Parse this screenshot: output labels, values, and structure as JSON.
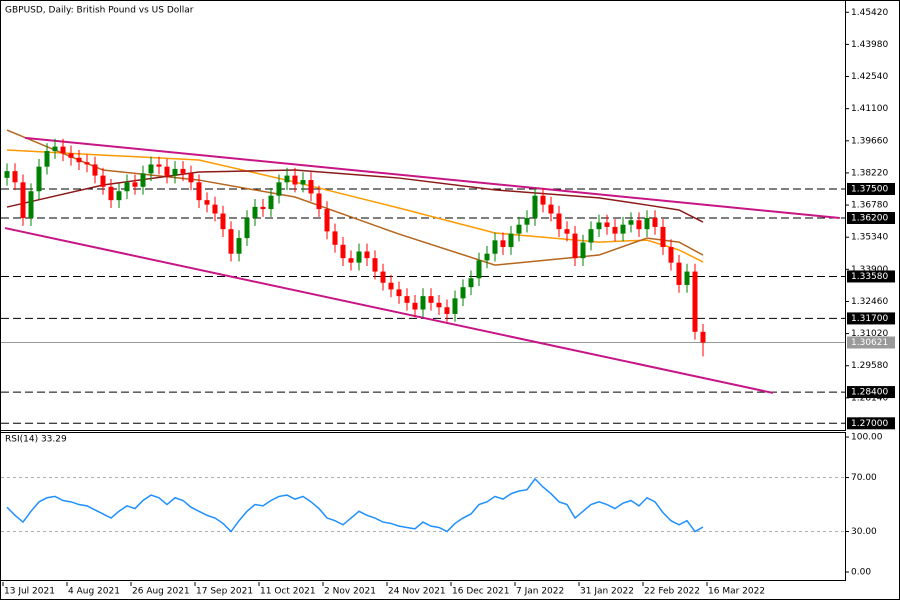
{
  "chart_data": [
    {
      "type": "candlestick",
      "title": "GBPUSD, Daily:  British Pound vs US Dollar",
      "up_color": "#008000",
      "down_color": "#ff0000",
      "candles": [
        [
          1.38,
          1.3865,
          1.3765,
          1.383
        ],
        [
          1.383,
          1.3865,
          1.3745,
          1.378
        ],
        [
          1.378,
          1.3815,
          1.3585,
          1.362
        ],
        [
          1.362,
          1.3775,
          1.3585,
          1.374
        ],
        [
          1.374,
          1.3885,
          1.3705,
          1.385
        ],
        [
          1.385,
          1.3955,
          1.3815,
          1.392
        ],
        [
          1.392,
          1.3975,
          1.3885,
          1.394
        ],
        [
          1.394,
          1.3975,
          1.3875,
          1.391
        ],
        [
          1.391,
          1.3945,
          1.3855,
          1.389
        ],
        [
          1.389,
          1.3925,
          1.3835,
          1.387
        ],
        [
          1.387,
          1.3905,
          1.3825,
          1.386
        ],
        [
          1.386,
          1.3895,
          1.3775,
          1.381
        ],
        [
          1.381,
          1.3845,
          1.3725,
          1.376
        ],
        [
          1.376,
          1.3795,
          1.3665,
          1.37
        ],
        [
          1.37,
          1.3775,
          1.3665,
          1.374
        ],
        [
          1.374,
          1.3815,
          1.3705,
          1.378
        ],
        [
          1.378,
          1.3815,
          1.3725,
          1.376
        ],
        [
          1.376,
          1.3855,
          1.3725,
          1.382
        ],
        [
          1.382,
          1.3895,
          1.3785,
          1.386
        ],
        [
          1.386,
          1.3895,
          1.3815,
          1.385
        ],
        [
          1.385,
          1.3885,
          1.3775,
          1.381
        ],
        [
          1.381,
          1.3875,
          1.3775,
          1.384
        ],
        [
          1.384,
          1.3875,
          1.3785,
          1.382
        ],
        [
          1.382,
          1.3855,
          1.3745,
          1.378
        ],
        [
          1.378,
          1.3815,
          1.3665,
          1.37
        ],
        [
          1.37,
          1.3735,
          1.3645,
          1.368
        ],
        [
          1.368,
          1.3715,
          1.3605,
          1.364
        ],
        [
          1.364,
          1.3675,
          1.3535,
          1.357
        ],
        [
          1.357,
          1.3605,
          1.3425,
          1.346
        ],
        [
          1.346,
          1.3565,
          1.3425,
          1.353
        ],
        [
          1.353,
          1.3655,
          1.3495,
          1.362
        ],
        [
          1.362,
          1.3705,
          1.3585,
          1.367
        ],
        [
          1.367,
          1.3705,
          1.3625,
          1.366
        ],
        [
          1.366,
          1.3755,
          1.3625,
          1.372
        ],
        [
          1.372,
          1.3815,
          1.3685,
          1.378
        ],
        [
          1.378,
          1.3845,
          1.3745,
          1.381
        ],
        [
          1.381,
          1.3845,
          1.3735,
          1.377
        ],
        [
          1.377,
          1.3825,
          1.3735,
          1.379
        ],
        [
          1.379,
          1.3825,
          1.3695,
          1.373
        ],
        [
          1.373,
          1.3765,
          1.3625,
          1.366
        ],
        [
          1.366,
          1.3695,
          1.3525,
          1.356
        ],
        [
          1.356,
          1.3595,
          1.3465,
          1.35
        ],
        [
          1.35,
          1.3535,
          1.3405,
          1.344
        ],
        [
          1.344,
          1.3475,
          1.3385,
          1.342
        ],
        [
          1.342,
          1.3505,
          1.3385,
          1.347
        ],
        [
          1.347,
          1.3505,
          1.3405,
          1.344
        ],
        [
          1.344,
          1.3475,
          1.3345,
          1.338
        ],
        [
          1.338,
          1.3415,
          1.3295,
          1.333
        ],
        [
          1.333,
          1.3365,
          1.3265,
          1.33
        ],
        [
          1.33,
          1.3335,
          1.3235,
          1.327
        ],
        [
          1.327,
          1.3305,
          1.3205,
          1.324
        ],
        [
          1.324,
          1.3275,
          1.3175,
          1.321
        ],
        [
          1.321,
          1.3305,
          1.3175,
          1.327
        ],
        [
          1.327,
          1.3305,
          1.3205,
          1.324
        ],
        [
          1.324,
          1.3275,
          1.3185,
          1.322
        ],
        [
          1.322,
          1.3255,
          1.3155,
          1.319
        ],
        [
          1.319,
          1.3295,
          1.3155,
          1.326
        ],
        [
          1.326,
          1.3345,
          1.3225,
          1.331
        ],
        [
          1.331,
          1.3385,
          1.3275,
          1.335
        ],
        [
          1.335,
          1.3465,
          1.3315,
          1.343
        ],
        [
          1.343,
          1.3495,
          1.3395,
          1.346
        ],
        [
          1.346,
          1.3555,
          1.3425,
          1.352
        ],
        [
          1.352,
          1.3555,
          1.3455,
          1.349
        ],
        [
          1.349,
          1.3585,
          1.3455,
          1.355
        ],
        [
          1.355,
          1.3625,
          1.3515,
          1.359
        ],
        [
          1.359,
          1.3655,
          1.3555,
          1.362
        ],
        [
          1.362,
          1.3755,
          1.3585,
          1.372
        ],
        [
          1.372,
          1.3755,
          1.3645,
          1.368
        ],
        [
          1.368,
          1.3715,
          1.3605,
          1.364
        ],
        [
          1.364,
          1.3675,
          1.3535,
          1.357
        ],
        [
          1.357,
          1.3605,
          1.3515,
          1.355
        ],
        [
          1.355,
          1.3585,
          1.3405,
          1.344
        ],
        [
          1.344,
          1.3545,
          1.3405,
          1.351
        ],
        [
          1.351,
          1.3605,
          1.3475,
          1.357
        ],
        [
          1.357,
          1.3635,
          1.3535,
          1.36
        ],
        [
          1.36,
          1.3635,
          1.3545,
          1.358
        ],
        [
          1.358,
          1.3615,
          1.3515,
          1.355
        ],
        [
          1.355,
          1.3625,
          1.3515,
          1.359
        ],
        [
          1.359,
          1.3645,
          1.3555,
          1.361
        ],
        [
          1.361,
          1.3645,
          1.3535,
          1.357
        ],
        [
          1.357,
          1.3655,
          1.3535,
          1.362
        ],
        [
          1.362,
          1.3655,
          1.3545,
          1.358
        ],
        [
          1.358,
          1.3615,
          1.3455,
          1.349
        ],
        [
          1.349,
          1.3525,
          1.3385,
          1.342
        ],
        [
          1.342,
          1.3455,
          1.3285,
          1.332
        ],
        [
          1.332,
          1.3415,
          1.3285,
          1.338
        ],
        [
          1.338,
          1.3415,
          1.3075,
          1.311
        ],
        [
          1.311,
          1.3145,
          1.3,
          1.3062
        ]
      ],
      "ylim": [
        1.267,
        1.4579
      ],
      "yticks": [
        {
          "value": 1.4542,
          "label": "1.45420"
        },
        {
          "value": 1.4398,
          "label": "1.43980"
        },
        {
          "value": 1.4254,
          "label": "1.42540"
        },
        {
          "value": 1.411,
          "label": "1.41100"
        },
        {
          "value": 1.3966,
          "label": "1.39660"
        },
        {
          "value": 1.3822,
          "label": "1.38220"
        },
        {
          "value": 1.3678,
          "label": "1.36780"
        },
        {
          "value": 1.3534,
          "label": "1.35340"
        },
        {
          "value": 1.339,
          "label": "1.33900"
        },
        {
          "value": 1.3246,
          "label": "1.32460"
        },
        {
          "value": 1.3102,
          "label": "1.31020"
        },
        {
          "value": 1.2958,
          "label": "1.29580"
        },
        {
          "value": 1.2814,
          "label": "1.28140"
        }
      ],
      "levels": [
        {
          "value": 1.375,
          "label": "1.37500"
        },
        {
          "value": 1.362,
          "label": "1.36200"
        },
        {
          "value": 1.3358,
          "label": "1.33580"
        },
        {
          "value": 1.317,
          "label": "1.31700"
        },
        {
          "value": 1.284,
          "label": "1.28400"
        },
        {
          "value": 1.27,
          "label": "1.27000"
        }
      ],
      "current": {
        "value": 1.30621,
        "label": "1.30621"
      },
      "moving_averages": [
        {
          "color": "#ff9900",
          "x": [
            0,
            12,
            24,
            36,
            49,
            61,
            74,
            80,
            84,
            87
          ],
          "values": [
            1.3925,
            1.3902,
            1.388,
            1.3781,
            1.3665,
            1.3553,
            1.3512,
            1.3521,
            1.3477,
            1.3423
          ]
        },
        {
          "color": "#b5651d",
          "x": [
            0,
            12,
            24,
            36,
            49,
            61,
            74,
            80,
            84,
            87
          ],
          "values": [
            1.4014,
            1.3835,
            1.379,
            1.3714,
            1.3548,
            1.3409,
            1.3454,
            1.353,
            1.3512,
            1.3454
          ]
        },
        {
          "color": "#8b1a1a",
          "x": [
            0,
            12,
            24,
            36,
            49,
            61,
            74,
            80,
            84,
            87
          ],
          "values": [
            1.3669,
            1.3768,
            1.3826,
            1.3835,
            1.3799,
            1.3746,
            1.371,
            1.3678,
            1.3656,
            1.3602
          ]
        }
      ],
      "trendlines": [
        {
          "color": "#c71585",
          "x": [
            2.25,
            104.1
          ],
          "values": [
            1.3979,
            1.362
          ]
        },
        {
          "color": "#c71585",
          "x": [
            -0.25,
            95.75
          ],
          "values": [
            1.3575,
            1.2836
          ]
        }
      ],
      "xticks": [
        {
          "value": 0,
          "label": "13 Jul 2021"
        },
        {
          "value": 8,
          "label": "4 Aug 2021"
        },
        {
          "value": 16,
          "label": "26 Aug 2021"
        },
        {
          "value": 24,
          "label": "17 Sep 2021"
        },
        {
          "value": 32,
          "label": "11 Oct 2021"
        },
        {
          "value": 40,
          "label": "2 Nov 2021"
        },
        {
          "value": 48,
          "label": "24 Nov 2021"
        },
        {
          "value": 56,
          "label": "16 Dec 2021"
        },
        {
          "value": 64,
          "label": "7 Jan 2022"
        },
        {
          "value": 72,
          "label": "31 Jan 2022"
        },
        {
          "value": 80,
          "label": "22 Feb 2022"
        },
        {
          "value": 88,
          "label": "16 Mar 2022"
        }
      ]
    },
    {
      "type": "line",
      "title": "RSI(14) 33.29",
      "color": "#1e90ff",
      "values": [
        48,
        42,
        37,
        45,
        52,
        55,
        56,
        53,
        52,
        50,
        49,
        46,
        43,
        40,
        45,
        49,
        47,
        53,
        57,
        55,
        50,
        55,
        53,
        48,
        45,
        42,
        40,
        36,
        30,
        38,
        45,
        50,
        49,
        53,
        56,
        57,
        54,
        56,
        52,
        47,
        40,
        38,
        35,
        40,
        45,
        42,
        40,
        37,
        36,
        34,
        33,
        32,
        37,
        34,
        33,
        30,
        36,
        40,
        43,
        50,
        52,
        56,
        54,
        58,
        60,
        61,
        69,
        63,
        58,
        52,
        50,
        40,
        45,
        50,
        52,
        50,
        47,
        51,
        53,
        49,
        55,
        52,
        44,
        38,
        35,
        38,
        30,
        33.29
      ],
      "ylim": [
        -7.4,
        103
      ],
      "yticks": [
        {
          "value": 100,
          "label": "100.00"
        },
        {
          "value": 70,
          "label": "70.00"
        },
        {
          "value": 30,
          "label": "30.00"
        },
        {
          "value": 0,
          "label": "0.00"
        }
      ],
      "levels": [
        70,
        30
      ]
    }
  ]
}
